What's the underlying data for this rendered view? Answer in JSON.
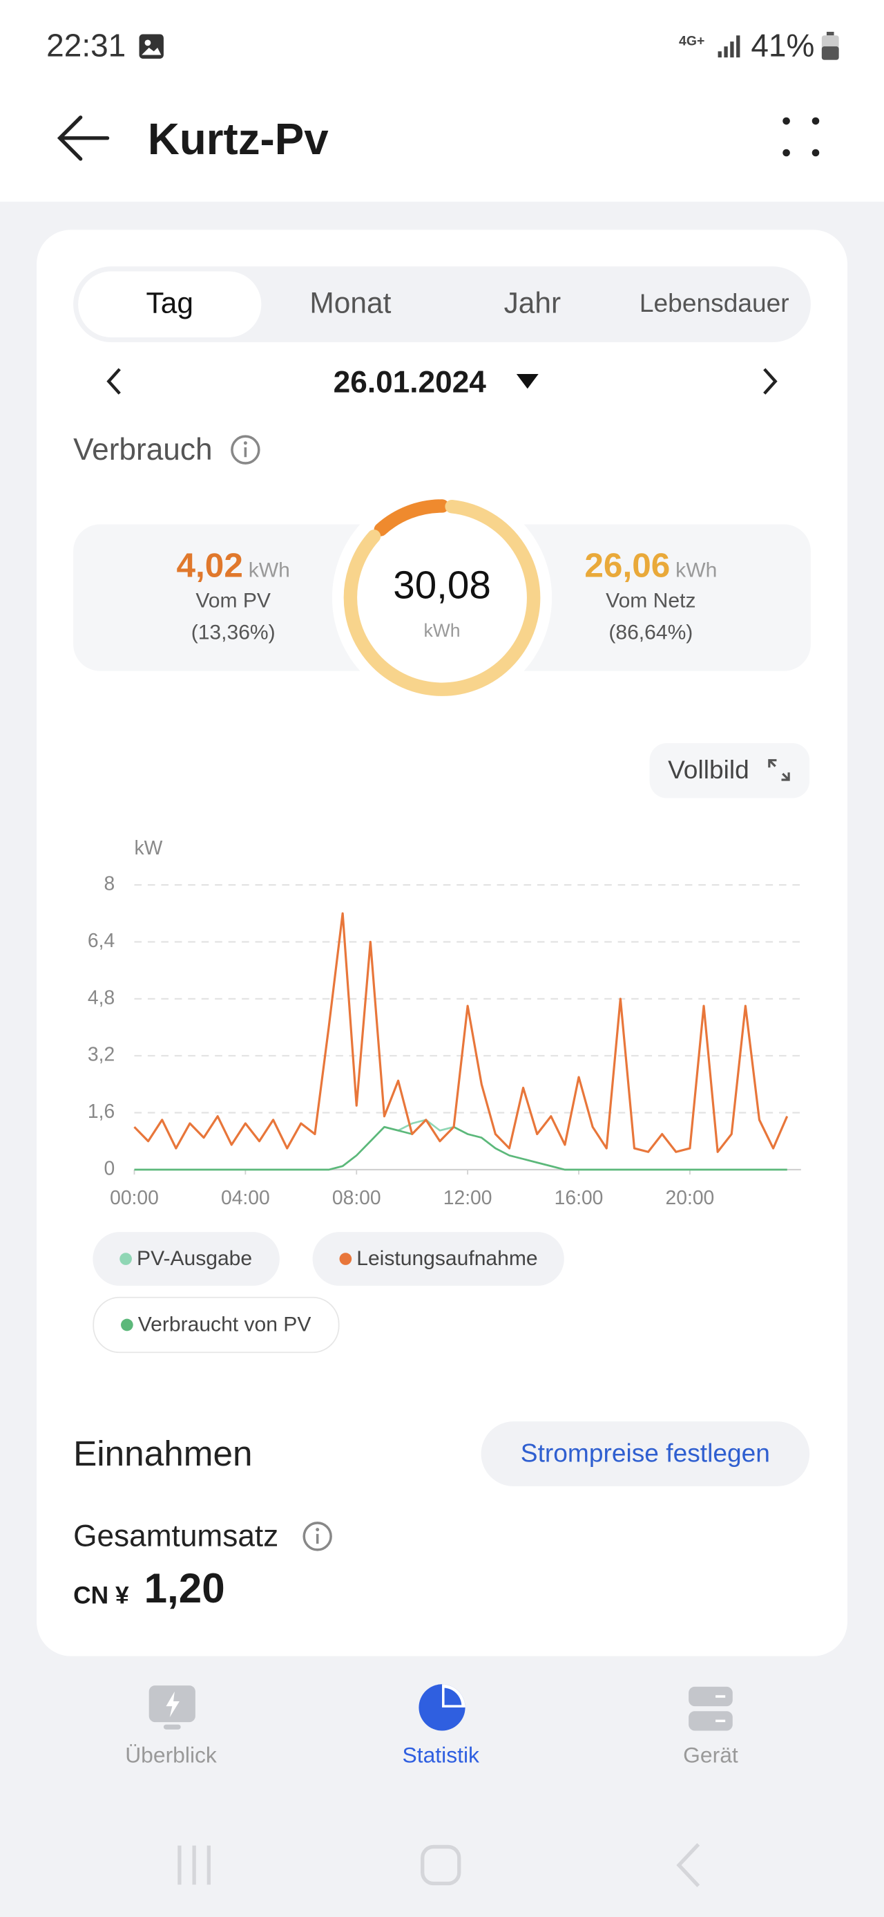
{
  "status_bar": {
    "time": "22:31",
    "network": "4G+",
    "battery": "41%"
  },
  "header": {
    "title": "Kurtz-Pv"
  },
  "tabs": [
    "Tag",
    "Monat",
    "Jahr",
    "Lebensdauer"
  ],
  "date": "26.01.2024",
  "consumption": {
    "title": "Verbrauch"
  },
  "chart_data": [
    {
      "type": "donut",
      "categories": [
        "Vom PV",
        "Vom Netz"
      ],
      "values": [
        4.02,
        26.06
      ],
      "value_labels": [
        "4,02",
        "26,06"
      ],
      "shares": [
        "(13,36%)",
        "(86,64%)"
      ],
      "colors": [
        "#ef8a2e",
        "#f8d48c"
      ],
      "label_colors": [
        "#e0782c",
        "#e9a93a"
      ],
      "unit": "kWh",
      "total": 30.08,
      "total_label": "30,08"
    },
    {
      "type": "line",
      "y_label": "kW",
      "xlim": [
        0,
        24
      ],
      "ylim": [
        0,
        8
      ],
      "xticks": [
        {
          "value": 0,
          "label": "00:00"
        },
        {
          "value": 4,
          "label": "04:00"
        },
        {
          "value": 8,
          "label": "08:00"
        },
        {
          "value": 12,
          "label": "12:00"
        },
        {
          "value": 16,
          "label": "16:00"
        },
        {
          "value": 20,
          "label": "20:00"
        }
      ],
      "yticks": [
        0,
        {
          "value": 1.6,
          "label": "1,6"
        },
        {
          "value": 3.2,
          "label": "3,2"
        },
        {
          "value": 4.8,
          "label": "4,8"
        },
        {
          "value": 6.4,
          "label": "6,4"
        },
        8
      ],
      "grid": true,
      "x": [
        0,
        0.5,
        1,
        1.5,
        2,
        2.5,
        3,
        3.5,
        4,
        4.5,
        5,
        5.5,
        6,
        6.5,
        7,
        7.5,
        8,
        8.5,
        9,
        9.5,
        10,
        10.5,
        11,
        11.5,
        12,
        12.5,
        13,
        13.5,
        14,
        14.5,
        15,
        15.5,
        16,
        16.5,
        17,
        17.5,
        18,
        18.5,
        19,
        19.5,
        20,
        20.5,
        21,
        21.5,
        22,
        22.5,
        23,
        23.5
      ],
      "series": [
        {
          "name": "PV-Ausgabe",
          "color": "#8fd6b4",
          "values": [
            0,
            0,
            0,
            0,
            0,
            0,
            0,
            0,
            0,
            0,
            0,
            0,
            0,
            0,
            0,
            0.1,
            0.4,
            0.8,
            1.2,
            1.1,
            1.3,
            1.4,
            1.1,
            1.2,
            1.0,
            0.9,
            0.6,
            0.4,
            0.3,
            0.2,
            0.1,
            0,
            0,
            0,
            0,
            0,
            0,
            0,
            0,
            0,
            0,
            0,
            0,
            0,
            0,
            0,
            0,
            0
          ]
        },
        {
          "name": "Leistungsaufnahme",
          "color": "#e8763a",
          "values": [
            1.2,
            0.8,
            1.4,
            0.6,
            1.3,
            0.9,
            1.5,
            0.7,
            1.3,
            0.8,
            1.4,
            0.6,
            1.3,
            1.0,
            4.0,
            7.2,
            1.8,
            6.4,
            1.5,
            2.5,
            1.0,
            1.4,
            0.8,
            1.2,
            4.6,
            2.4,
            1.0,
            0.6,
            2.3,
            1.0,
            1.5,
            0.7,
            2.6,
            1.2,
            0.6,
            4.8,
            0.6,
            0.5,
            1.0,
            0.5,
            0.6,
            4.6,
            0.5,
            1.0,
            4.6,
            1.4,
            0.6,
            1.5
          ]
        },
        {
          "name": "Verbraucht von PV",
          "color": "#5cb87a",
          "values": [
            0,
            0,
            0,
            0,
            0,
            0,
            0,
            0,
            0,
            0,
            0,
            0,
            0,
            0,
            0,
            0.1,
            0.4,
            0.8,
            1.2,
            1.1,
            1.0,
            1.4,
            0.8,
            1.2,
            1.0,
            0.9,
            0.6,
            0.4,
            0.3,
            0.2,
            0.1,
            0,
            0,
            0,
            0,
            0,
            0,
            0,
            0,
            0,
            0,
            0,
            0,
            0,
            0,
            0,
            0,
            0
          ]
        }
      ],
      "fullscreen_label": "Vollbild"
    }
  ],
  "revenue": {
    "title": "Einnahmen",
    "button": "Strompreise festlegen",
    "total_title": "Gesamtumsatz",
    "currency": "CN ¥",
    "amount": "1,20"
  },
  "nav": [
    "Überblick",
    "Statistik",
    "Gerät"
  ]
}
